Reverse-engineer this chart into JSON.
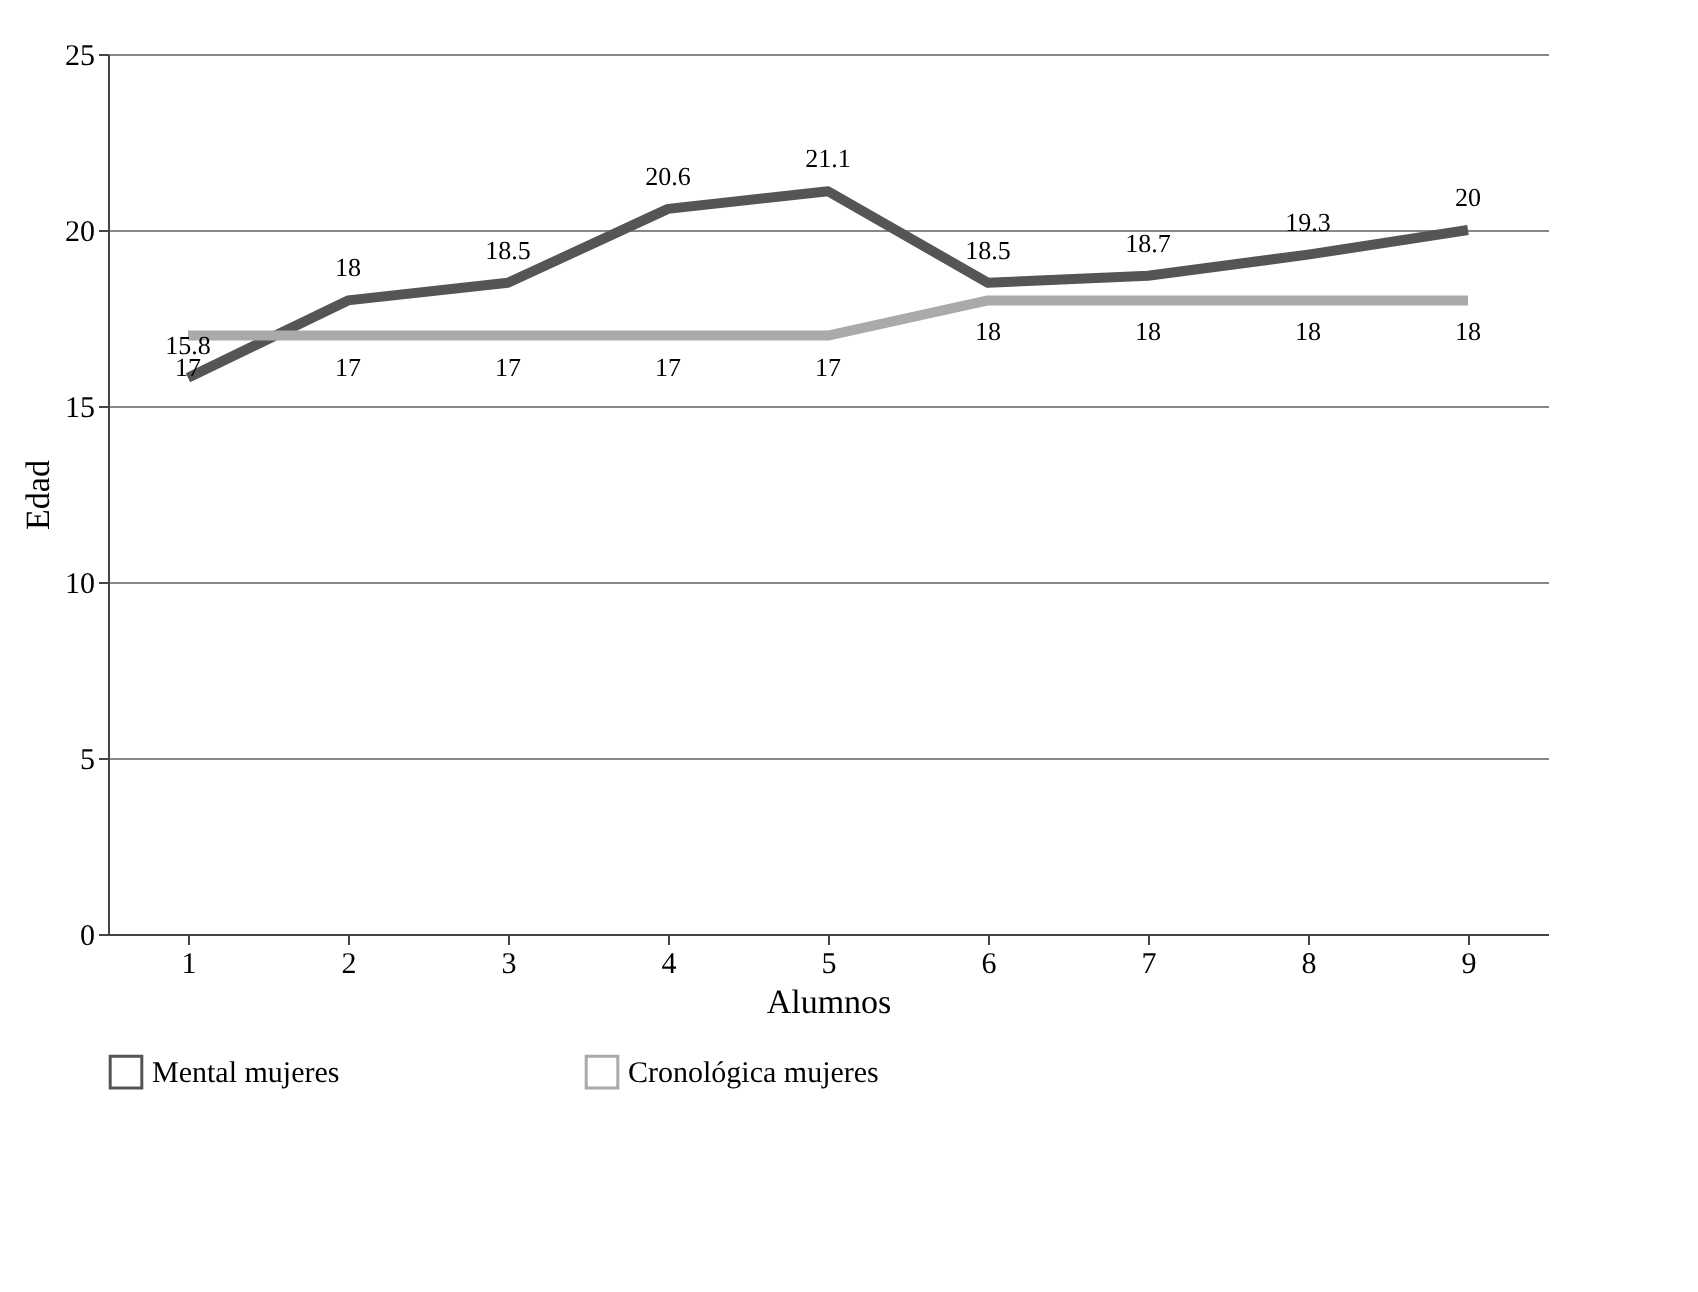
{
  "chart_data": {
    "type": "line",
    "xlabel": "Alumnos",
    "ylabel": "Edad",
    "categories": [
      "1",
      "2",
      "3",
      "4",
      "5",
      "6",
      "7",
      "8",
      "9"
    ],
    "series": [
      {
        "name": "Mental mujeres",
        "color": "#555555",
        "values": [
          15.8,
          18,
          18.5,
          20.6,
          21.1,
          18.5,
          18.7,
          19.3,
          20
        ]
      },
      {
        "name": "Cronológica mujeres",
        "color": "#aaaaaa",
        "values": [
          17,
          17,
          17,
          17,
          17,
          18,
          18,
          18,
          18
        ]
      }
    ],
    "ylim": [
      0,
      25
    ],
    "yticks": [
      0,
      5,
      10,
      15,
      20,
      25
    ],
    "grid": "y",
    "legend": "bottom",
    "data_labels": true,
    "marker": "none",
    "line_style": "solid"
  }
}
